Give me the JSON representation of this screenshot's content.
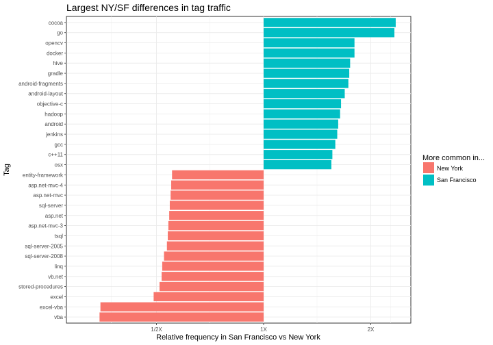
{
  "chart_data": {
    "type": "bar",
    "orientation": "horizontal",
    "title": "Largest NY/SF differences in tag traffic",
    "xlabel": "Relative frequency in San Francisco vs New York",
    "ylabel": "Tag",
    "x_scale": "log2",
    "xlim": [
      "0.294X",
      "2.42X"
    ],
    "x_ticks": [
      {
        "label": "1/2X",
        "value": 0.5
      },
      {
        "label": "1X",
        "value": 1
      },
      {
        "label": "2X",
        "value": 2
      }
    ],
    "grid": true,
    "legend": {
      "title": "More common in...",
      "placement": "right",
      "entries": [
        {
          "name": "New York",
          "color": "#F8766D"
        },
        {
          "name": "San Francisco",
          "color": "#00BFC4"
        }
      ]
    },
    "series": [
      {
        "name": "San Francisco",
        "color": "#00BFC4",
        "categories": [
          "cocoa",
          "go",
          "opencv",
          "docker",
          "hive",
          "gradle",
          "android-fragments",
          "android-layout",
          "objective-c",
          "hadoop",
          "android",
          "jenkins",
          "gcc",
          "c++11",
          "osx"
        ],
        "values": [
          2.35,
          2.33,
          1.8,
          1.8,
          1.75,
          1.74,
          1.73,
          1.69,
          1.65,
          1.64,
          1.62,
          1.61,
          1.59,
          1.56,
          1.55
        ]
      },
      {
        "name": "New York",
        "color": "#F8766D",
        "categories": [
          "entity-framework",
          "asp.net-mvc-4",
          "asp.net-mvc",
          "sql-server",
          "asp.net",
          "asp.net-mvc-3",
          "tsql",
          "sql-server-2005",
          "sql-server-2008",
          "linq",
          "vb.net",
          "stored-procedures",
          "excel",
          "excel-vba",
          "vba"
        ],
        "values": [
          0.553,
          0.55,
          0.548,
          0.545,
          0.543,
          0.54,
          0.538,
          0.535,
          0.525,
          0.519,
          0.517,
          0.51,
          0.491,
          0.348,
          0.346
        ]
      }
    ]
  }
}
